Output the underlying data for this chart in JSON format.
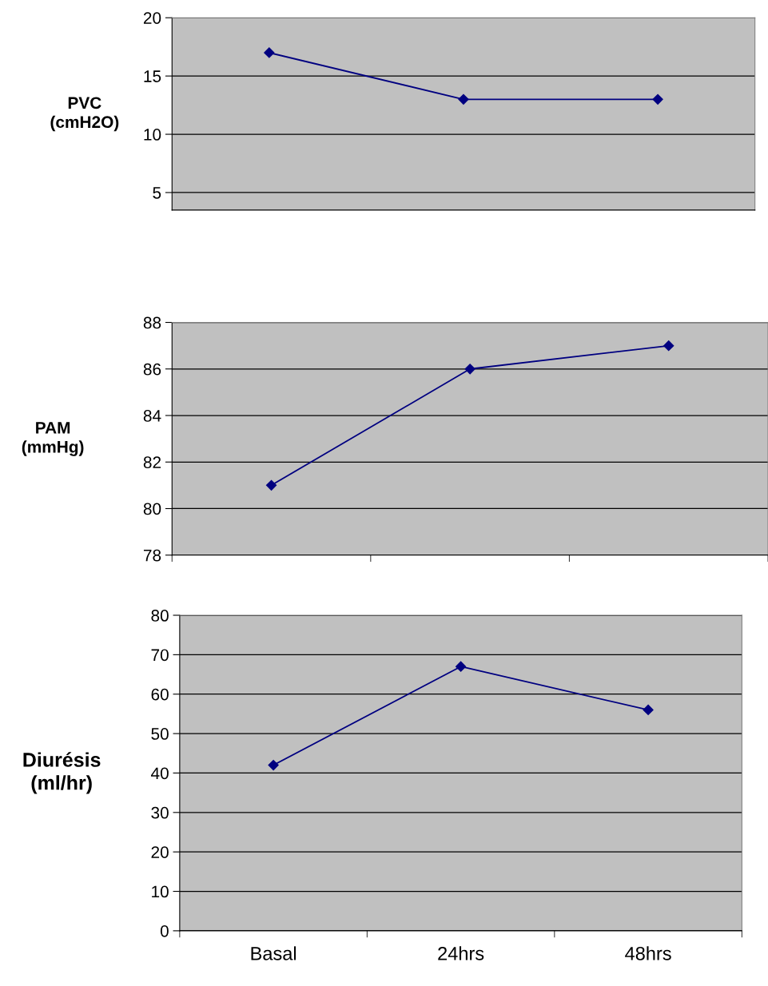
{
  "chart_data": [
    {
      "type": "line",
      "ylabel": "PVC\n(cmH2O)",
      "categories": [
        null,
        null,
        null
      ],
      "series": [
        {
          "color": "#000080",
          "values": [
            17,
            13,
            13
          ]
        }
      ],
      "ylim": [
        3.5,
        20
      ],
      "yticks": [
        5,
        10,
        15,
        20
      ],
      "grid": "y",
      "marker": "diamond",
      "line_style": "solid",
      "tick_labels": "y"
    },
    {
      "type": "line",
      "ylabel": "PAM\n(mmHg)",
      "categories": [
        null,
        null,
        null
      ],
      "series": [
        {
          "color": "#000080",
          "values": [
            81,
            86,
            87
          ]
        }
      ],
      "ylim": [
        78,
        88
      ],
      "yticks": [
        78,
        80,
        82,
        84,
        86,
        88
      ],
      "grid": "y",
      "marker": "diamond",
      "line_style": "solid",
      "tick_labels": "y"
    },
    {
      "type": "line",
      "ylabel": "Diurésis\n(ml/hr)",
      "categories": [
        "Basal",
        "24hrs",
        "48hrs"
      ],
      "series": [
        {
          "color": "#000080",
          "values": [
            42,
            67,
            56
          ]
        }
      ],
      "ylim": [
        0,
        80
      ],
      "yticks": [
        0,
        10,
        20,
        30,
        40,
        50,
        60,
        70,
        80
      ],
      "grid": "y",
      "marker": "diamond",
      "line_style": "solid"
    }
  ]
}
